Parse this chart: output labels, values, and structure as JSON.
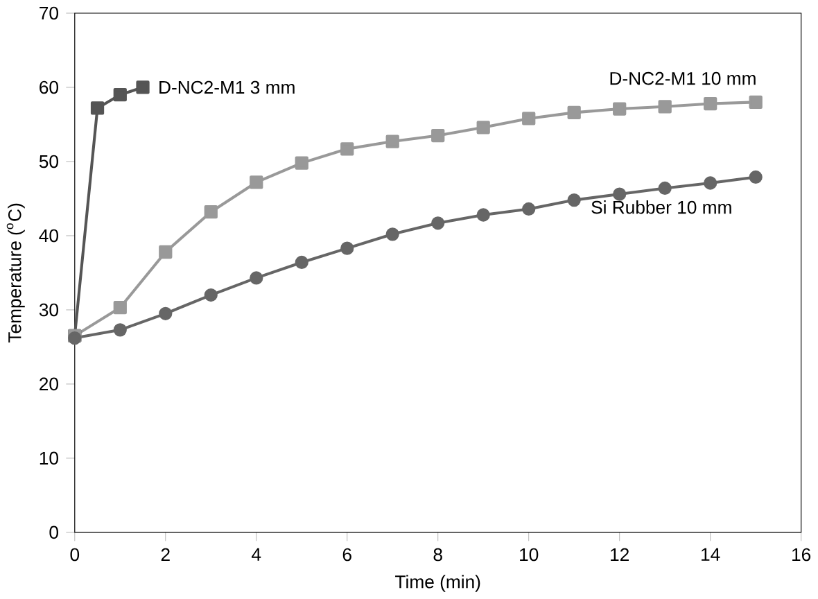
{
  "chart_data": {
    "type": "line",
    "xlabel": "Time (min)",
    "ylabel": "Temperature ($^{o}$C)",
    "xlim": [
      0,
      16
    ],
    "xticks": [
      0,
      2,
      4,
      6,
      8,
      10,
      12,
      14,
      16
    ],
    "ylim": [
      0,
      70
    ],
    "yticks": [
      0,
      10,
      20,
      30,
      40,
      50,
      60,
      70
    ],
    "series": [
      {
        "name": "D-NC2-M1 3 mm",
        "color": "#555555",
        "marker": "square",
        "x": [
          0,
          0.5,
          1,
          1.5
        ],
        "values": [
          26.5,
          57.2,
          59,
          60
        ]
      },
      {
        "name": "D-NC2-M1 10 mm",
        "color": "#999999",
        "marker": "square",
        "x": [
          0,
          1,
          2,
          3,
          4,
          5,
          6,
          7,
          8,
          9,
          10,
          11,
          12,
          13,
          14,
          15
        ],
        "values": [
          26.5,
          30.3,
          37.8,
          43.2,
          47.2,
          49.8,
          51.7,
          52.7,
          53.5,
          54.6,
          55.8,
          56.6,
          57.1,
          57.4,
          57.8,
          58.0
        ]
      },
      {
        "name": "Si Rubber 10 mm",
        "color": "#666666",
        "marker": "circle",
        "x": [
          0,
          1,
          2,
          3,
          4,
          5,
          6,
          7,
          8,
          9,
          10,
          11,
          12,
          13,
          14,
          15
        ],
        "values": [
          26.2,
          27.3,
          29.5,
          32,
          34.3,
          36.4,
          38.3,
          40.2,
          41.7,
          42.8,
          43.6,
          44.8,
          45.6,
          46.4,
          47.1,
          47.9
        ]
      }
    ]
  }
}
